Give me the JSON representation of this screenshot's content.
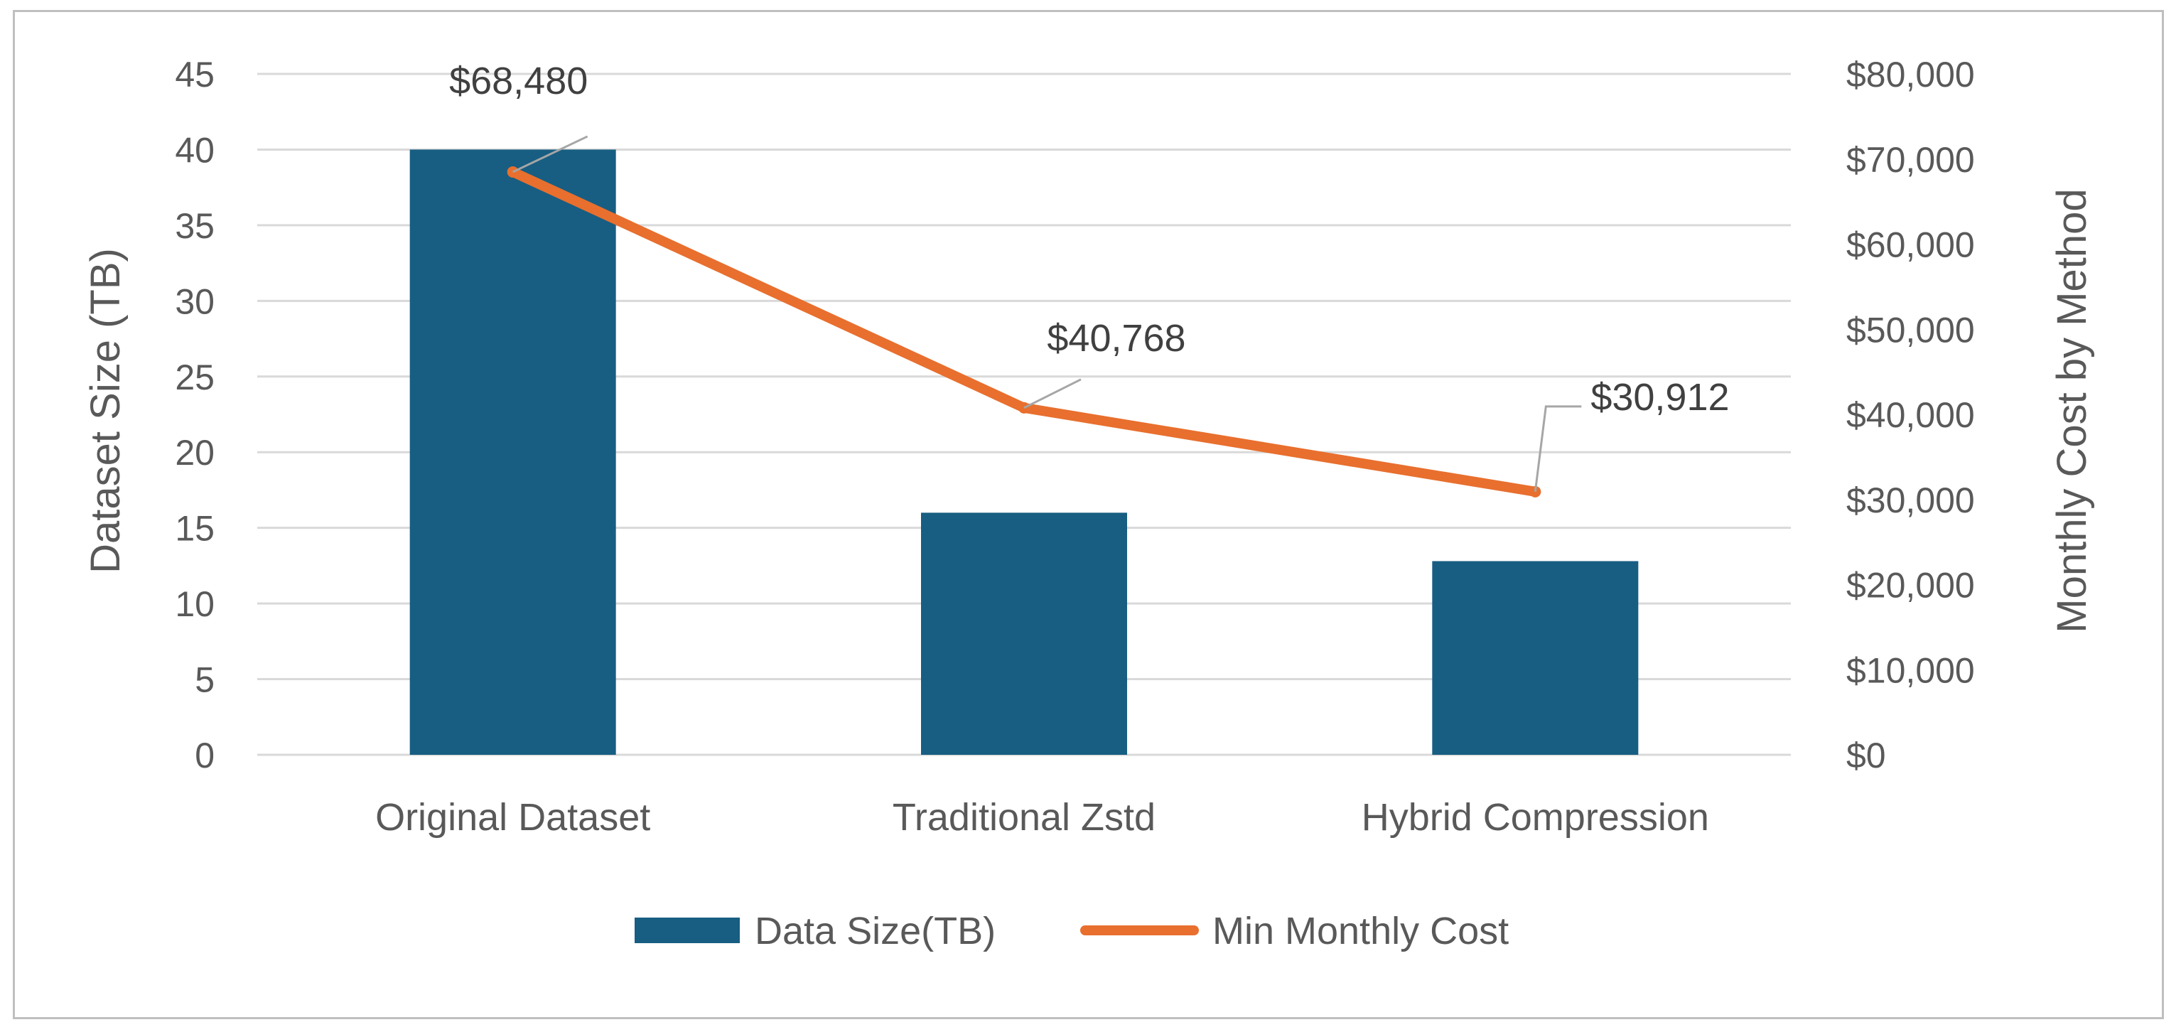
{
  "chart_data": {
    "type": "bar+line",
    "categories": [
      "Original Dataset",
      "Traditional Zstd",
      "Hybrid Compression"
    ],
    "series": [
      {
        "name": "Data Size(TB)",
        "type": "bar",
        "axis": "left",
        "values": [
          40,
          16,
          12.8
        ],
        "color": "#175e82"
      },
      {
        "name": "Min Monthly Cost",
        "type": "line",
        "axis": "right",
        "values": [
          68480,
          40768,
          30912
        ],
        "data_labels": [
          "$68,480",
          "$40,768",
          "$30,912"
        ],
        "color": "#e86f2e"
      }
    ],
    "ylabel": "Dataset Size (TB)",
    "y2label": "Monthly Cost by Method",
    "ylim": [
      0,
      45
    ],
    "y2lim": [
      0,
      80000
    ],
    "yticks": [
      "0",
      "5",
      "10",
      "15",
      "20",
      "25",
      "30",
      "35",
      "40",
      "45"
    ],
    "y2ticks": [
      "$0",
      "$10,000",
      "$20,000",
      "$30,000",
      "$40,000",
      "$50,000",
      "$60,000",
      "$70,000",
      "$80,000"
    ],
    "grid": true,
    "legend_position": "bottom"
  }
}
